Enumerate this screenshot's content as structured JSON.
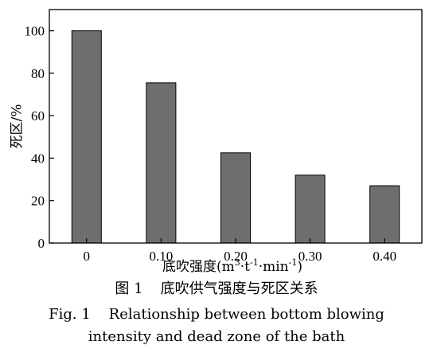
{
  "chart_data": {
    "type": "bar",
    "categories": [
      "0",
      "0.10",
      "0.20",
      "0.30",
      "0.40"
    ],
    "values": [
      100,
      75.5,
      42.5,
      32,
      27
    ],
    "ylabel": "死区/%",
    "xlabel_main": "底吹强度(m",
    "xlabel_sup1": "3",
    "xlabel_mid1": "·t",
    "xlabel_sup2": "-1",
    "xlabel_mid2": "·min",
    "xlabel_sup3": "-1",
    "xlabel_end": ")",
    "ylim": [
      0,
      110
    ],
    "yticks": [
      0,
      20,
      40,
      60,
      80,
      100
    ],
    "grid": false,
    "bar_color": "#6e6e6e"
  },
  "caption": {
    "cn_number": "图 1",
    "cn_text": "底吹供气强度与死区关系",
    "en_line1": "Fig. 1    Relationship between bottom blowing",
    "en_line2": "intensity and dead zone of the bath"
  }
}
